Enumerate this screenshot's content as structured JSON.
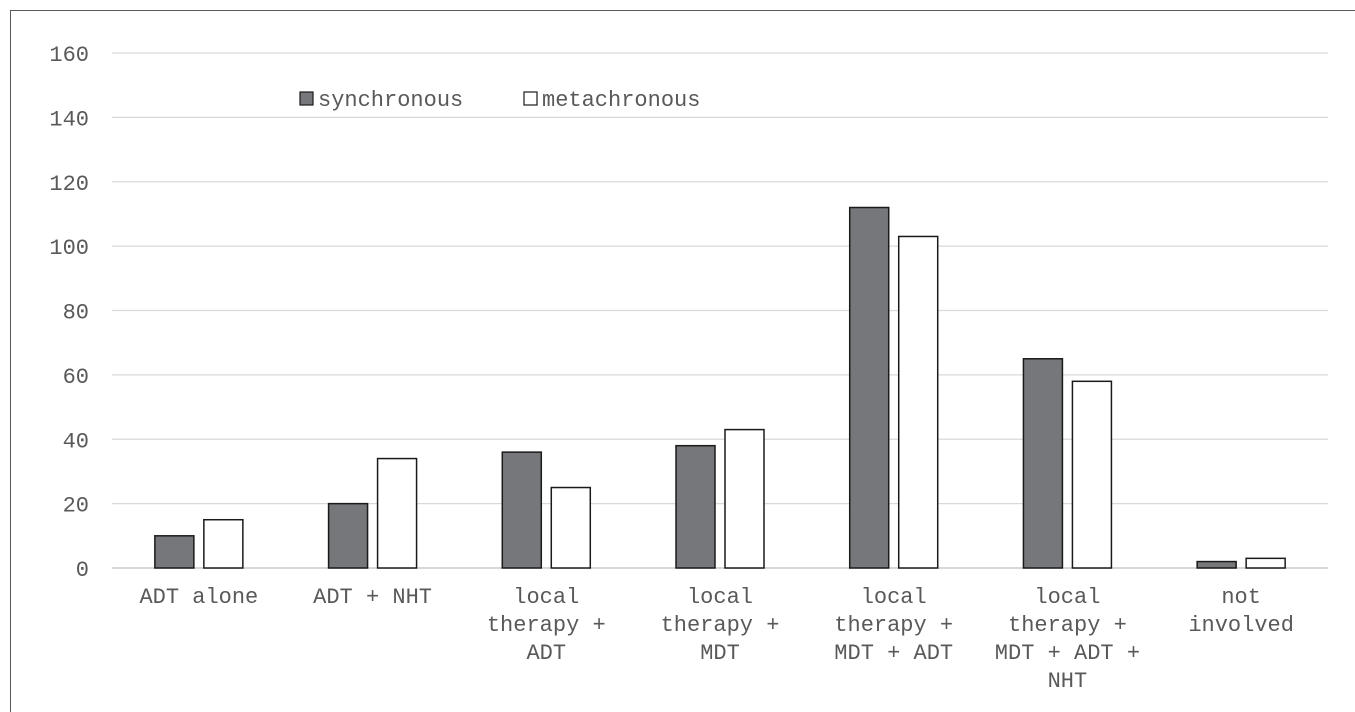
{
  "chart_data": {
    "type": "bar",
    "title": "",
    "xlabel": "",
    "ylabel": "",
    "ylim": [
      0,
      160
    ],
    "yticks": [
      "0",
      "20",
      "40",
      "60",
      "80",
      "100",
      "120",
      "140",
      "160"
    ],
    "grid": true,
    "legend_position": "top-left",
    "categories": [
      [
        "ADT alone"
      ],
      [
        "ADT + NHT"
      ],
      [
        "local",
        "therapy +",
        "ADT"
      ],
      [
        "local",
        "therapy +",
        "MDT"
      ],
      [
        "local",
        "therapy +",
        "MDT + ADT"
      ],
      [
        "local",
        "therapy +",
        "MDT + ADT +",
        "NHT"
      ],
      [
        "not",
        "involved"
      ]
    ],
    "series": [
      {
        "name": "synchronous",
        "color": "#76777a",
        "values": [
          10,
          20,
          36,
          38,
          112,
          65,
          2
        ]
      },
      {
        "name": "metachronous",
        "color": "#ffffff",
        "values": [
          15,
          34,
          25,
          43,
          103,
          58,
          3
        ]
      }
    ]
  }
}
